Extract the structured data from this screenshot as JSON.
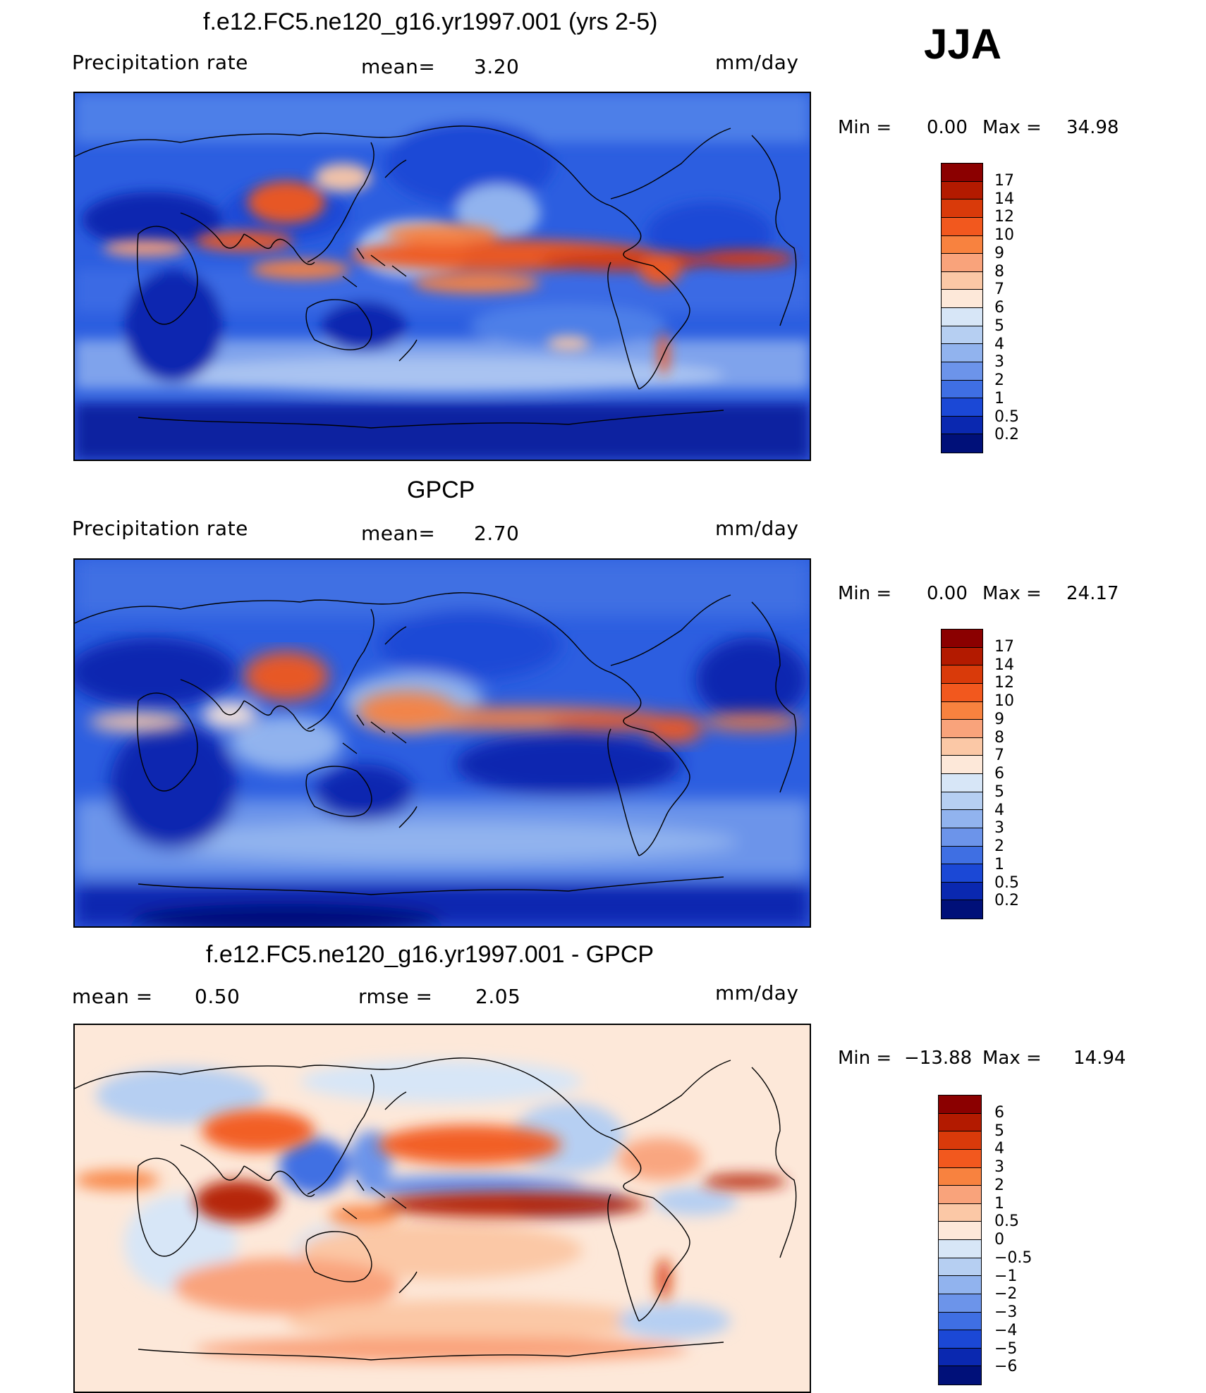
{
  "season": "JJA",
  "panels": [
    {
      "title": "f.e12.FC5.ne120_g16.yr1997.001 (yrs 2-5)",
      "left_label": "Precipitation  rate",
      "center_label": "mean=",
      "center_value": "3.20",
      "units": "mm/day",
      "min_label": "Min  =",
      "min_value": "0.00",
      "max_label": "Max  =",
      "max_value": "34.98",
      "colorbar": {
        "levels": [
          "17",
          "14",
          "12",
          "10",
          "9",
          "8",
          "7",
          "6",
          "5",
          "4",
          "3",
          "2",
          "1",
          "0.5",
          "0.2"
        ],
        "colors": [
          "#8b0000",
          "#b31a00",
          "#d93a0a",
          "#f2581e",
          "#f8823f",
          "#f9a37b",
          "#fbc8a6",
          "#fde8d9",
          "#d7e6f7",
          "#b6cff2",
          "#91b3ee",
          "#6c94ea",
          "#3f6fe3",
          "#1b48d6",
          "#0a28b0",
          "#001079"
        ]
      }
    },
    {
      "title": "GPCP",
      "left_label": "Precipitation  rate",
      "center_label": "mean=",
      "center_value": "2.70",
      "units": "mm/day",
      "min_label": "Min  =",
      "min_value": "0.00",
      "max_label": "Max  =",
      "max_value": "24.17",
      "colorbar": {
        "levels": [
          "17",
          "14",
          "12",
          "10",
          "9",
          "8",
          "7",
          "6",
          "5",
          "4",
          "3",
          "2",
          "1",
          "0.5",
          "0.2"
        ],
        "colors": [
          "#8b0000",
          "#b31a00",
          "#d93a0a",
          "#f2581e",
          "#f8823f",
          "#f9a37b",
          "#fbc8a6",
          "#fde8d9",
          "#d7e6f7",
          "#b6cff2",
          "#91b3ee",
          "#6c94ea",
          "#3f6fe3",
          "#1b48d6",
          "#0a28b0",
          "#001079"
        ]
      }
    },
    {
      "title": "f.e12.FC5.ne120_g16.yr1997.001 - GPCP",
      "left_label": "mean  =",
      "left_value": "0.50",
      "center_label": "rmse  =",
      "center_value": "2.05",
      "units": "mm/day",
      "min_label": "Min  =",
      "min_value": "−13.88",
      "max_label": "Max  =",
      "max_value": "14.94",
      "colorbar": {
        "levels": [
          "6",
          "5",
          "4",
          "3",
          "2",
          "1",
          "0.5",
          "0",
          "−0.5",
          "−1",
          "−2",
          "−3",
          "−4",
          "−5",
          "−6"
        ],
        "colors": [
          "#8b0000",
          "#b31a00",
          "#d93a0a",
          "#f2581e",
          "#f8823f",
          "#f9a37b",
          "#fbc8a6",
          "#fde8d9",
          "#d7e6f7",
          "#b6cff2",
          "#91b3ee",
          "#6c94ea",
          "#3f6fe3",
          "#1b48d6",
          "#0a28b0",
          "#001079"
        ]
      }
    }
  ]
}
